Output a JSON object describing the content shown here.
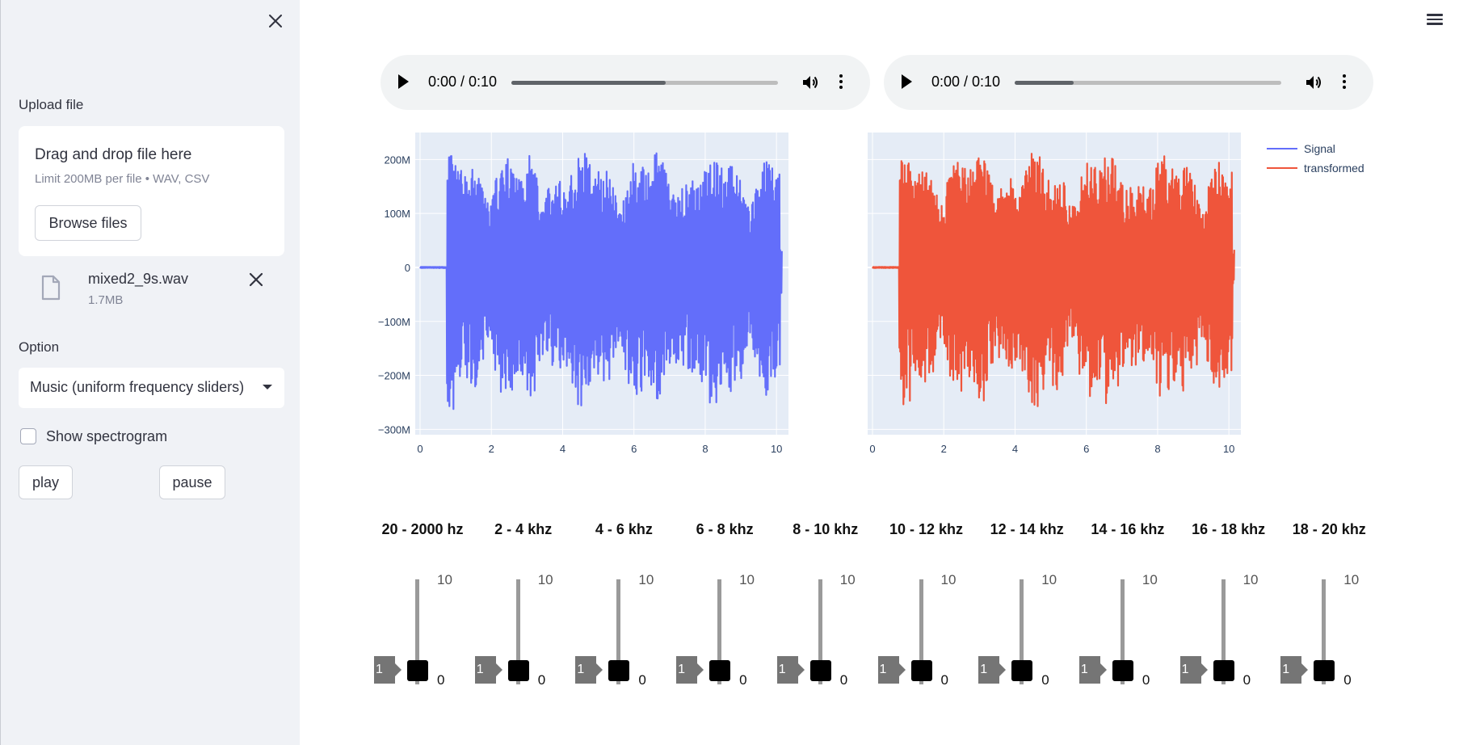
{
  "sidebar": {
    "upload_label": "Upload file",
    "dropzone_title": "Drag and drop file here",
    "dropzone_limit": "Limit 200MB per file • WAV, CSV",
    "browse_label": "Browse files",
    "file": {
      "name": "mixed2_9s.wav",
      "size": "1.7MB"
    },
    "option_label": "Option",
    "option_value": "Music (uniform frequency sliders)",
    "spectrogram_label": "Show spectrogram",
    "spectrogram_checked": false,
    "play_label": "play",
    "pause_label": "pause"
  },
  "audio_players": [
    {
      "time": "0:00 / 0:10",
      "progress": 0.58
    },
    {
      "time": "0:00 / 0:10",
      "progress": 0.22
    }
  ],
  "legend": [
    {
      "name": "Signal",
      "color": "#636efa"
    },
    {
      "name": "transformed",
      "color": "#ef553b"
    }
  ],
  "chart_data": [
    {
      "type": "line",
      "series": [
        {
          "name": "Signal",
          "color": "#636efa"
        }
      ],
      "xlim": [
        0,
        10.2
      ],
      "ylim": [
        -310000000,
        250000000
      ],
      "x_ticks": [
        "0",
        "2",
        "4",
        "6",
        "8",
        "10"
      ],
      "y_ticks": [
        "200M",
        "100M",
        "0",
        "−100M",
        "−200M",
        "−300M"
      ]
    },
    {
      "type": "line",
      "series": [
        {
          "name": "transformed",
          "color": "#ef553b"
        }
      ],
      "xlim": [
        0,
        10.2
      ],
      "ylim": [
        -310000000,
        250000000
      ],
      "x_ticks": [
        "0",
        "2",
        "4",
        "6",
        "8",
        "10"
      ],
      "y_ticks": []
    }
  ],
  "sliders": [
    {
      "label": "20 - 2000 hz",
      "max": "10",
      "min": "0",
      "value": "1"
    },
    {
      "label": "2 - 4 khz",
      "max": "10",
      "min": "0",
      "value": "1"
    },
    {
      "label": "4 - 6 khz",
      "max": "10",
      "min": "0",
      "value": "1"
    },
    {
      "label": "6 - 8 khz",
      "max": "10",
      "min": "0",
      "value": "1"
    },
    {
      "label": "8 - 10 khz",
      "max": "10",
      "min": "0",
      "value": "1"
    },
    {
      "label": "10 - 12 khz",
      "max": "10",
      "min": "0",
      "value": "1"
    },
    {
      "label": "12 - 14 khz",
      "max": "10",
      "min": "0",
      "value": "1"
    },
    {
      "label": "14 - 16 khz",
      "max": "10",
      "min": "0",
      "value": "1"
    },
    {
      "label": "16 - 18 khz",
      "max": "10",
      "min": "0",
      "value": "1"
    },
    {
      "label": "18 - 20 khz",
      "max": "10",
      "min": "0",
      "value": "1"
    }
  ]
}
